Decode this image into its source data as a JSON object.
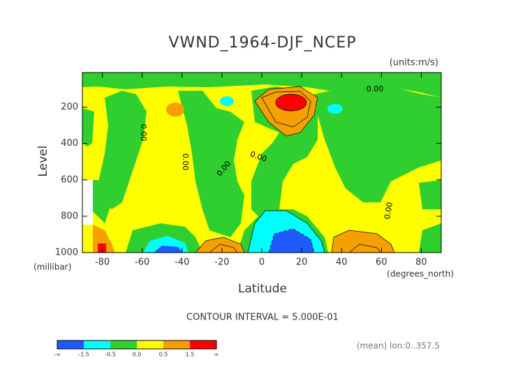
{
  "chart_data": {
    "type": "contour",
    "title": "VWND_1964-DJF_NCEP",
    "units": "(units:m/s)",
    "x_label": "Latitude",
    "x_units": "(degrees_north)",
    "y_label": "Level",
    "y_units": "(millibar)",
    "xlim": [
      -90,
      90
    ],
    "xticks": [
      -80,
      -60,
      -40,
      -20,
      0,
      20,
      40,
      60,
      80
    ],
    "ylim": [
      1000,
      10
    ],
    "yticks": [
      200,
      400,
      600,
      800,
      1000
    ],
    "contour_labels": [
      "0.00",
      "0.00",
      "0.00",
      "0.00",
      "0.00",
      "0.00"
    ],
    "contour_interval": "CONTOUR INTERVAL = 5.000E-01",
    "colorbar": {
      "labels": [
        "-∞",
        "-1.5",
        "-0.5",
        "0.0",
        "0.5",
        "1.5",
        "∞"
      ],
      "colors": [
        "#1e5aff",
        "#00ffff",
        "#2ecf2e",
        "#ffff00",
        "#f5a000",
        "#ff0000"
      ]
    },
    "footnote": "(mean) lon:0..357.5"
  }
}
